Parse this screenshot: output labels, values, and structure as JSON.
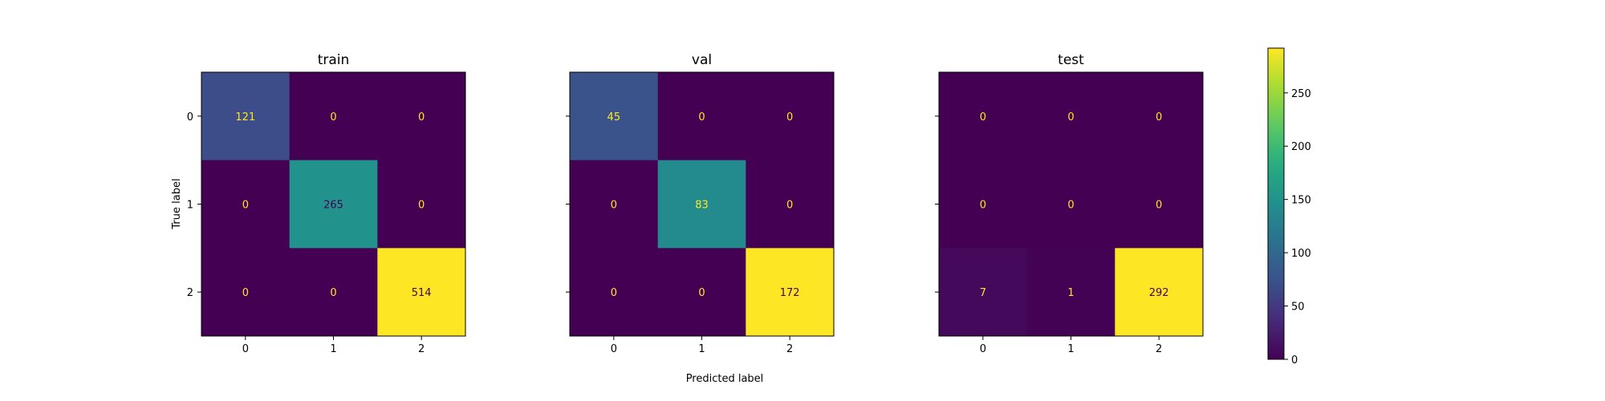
{
  "chart_data": {
    "type": "heatmap",
    "subtype": "confusion-matrix",
    "colormap": "viridis",
    "xlabel": "Predicted label",
    "ylabel": "True label",
    "class_labels": [
      "0",
      "1",
      "2"
    ],
    "panels": [
      {
        "title": "train",
        "matrix": [
          [
            121,
            0,
            0
          ],
          [
            0,
            265,
            0
          ],
          [
            0,
            0,
            514
          ]
        ]
      },
      {
        "title": "val",
        "matrix": [
          [
            45,
            0,
            0
          ],
          [
            0,
            83,
            0
          ],
          [
            0,
            0,
            172
          ]
        ]
      },
      {
        "title": "test",
        "matrix": [
          [
            0,
            0,
            0
          ],
          [
            0,
            0,
            0
          ],
          [
            7,
            1,
            292
          ]
        ]
      }
    ],
    "colorbar": {
      "range": [
        0,
        292
      ],
      "ticks": [
        0,
        50,
        100,
        150,
        200,
        250
      ],
      "tick_labels": [
        "0",
        "50",
        "100",
        "150",
        "200",
        "250"
      ]
    }
  }
}
